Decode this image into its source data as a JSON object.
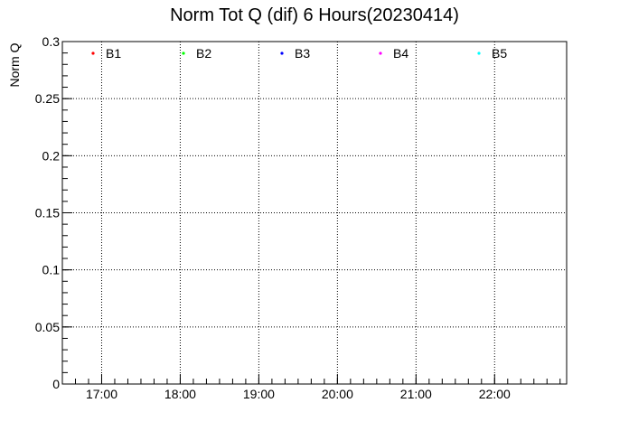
{
  "chart_data": {
    "type": "scatter",
    "title": "Norm Tot Q (dif) 6 Hours(20230414)",
    "xlabel": "",
    "ylabel": "Norm Q",
    "x_ticks": [
      "17:00",
      "18:00",
      "19:00",
      "20:00",
      "21:00",
      "22:00"
    ],
    "xlim": [
      "16:30",
      "22:55"
    ],
    "ylim": [
      0,
      0.3
    ],
    "y_ticks": [
      0,
      0.05,
      0.1,
      0.15,
      0.2,
      0.25,
      0.3
    ],
    "y_tick_labels": [
      "0",
      "0.05",
      "0.1",
      "0.15",
      "0.2",
      "0.25",
      "0.3"
    ],
    "grid": true,
    "legend_position": "top",
    "series": [
      {
        "name": "B1",
        "color": "#ff0000",
        "points": []
      },
      {
        "name": "B2",
        "color": "#00ff00",
        "points": []
      },
      {
        "name": "B3",
        "color": "#0000ff",
        "points": []
      },
      {
        "name": "B4",
        "color": "#ff00ff",
        "points": []
      },
      {
        "name": "B5",
        "color": "#00ffff",
        "points": []
      }
    ]
  }
}
